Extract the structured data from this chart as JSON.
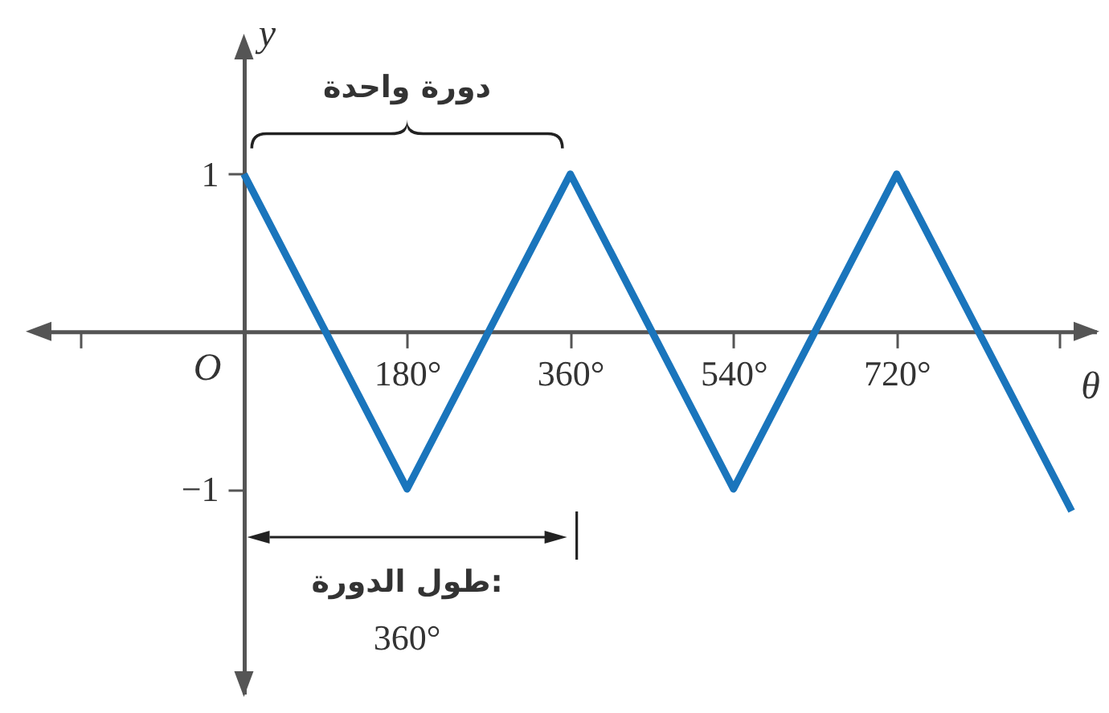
{
  "chart_data": {
    "type": "line",
    "xlabel": "θ",
    "ylabel": "y",
    "x": [
      0,
      180,
      360,
      540,
      720,
      913
    ],
    "series": [
      {
        "color": "#1a75bc",
        "values": [
          1,
          -1,
          1,
          -1,
          1,
          -1.14
        ]
      }
    ],
    "xlim": [
      -230,
      940
    ],
    "ylim": [
      -2.3,
      1.85
    ],
    "xticks": [
      {
        "value": -180,
        "label": null
      },
      {
        "value": 180,
        "label": "180°"
      },
      {
        "value": 360,
        "label": "360°"
      },
      {
        "value": 540,
        "label": "540°"
      },
      {
        "value": 720,
        "label": "720°"
      },
      {
        "value": 900,
        "label": null
      }
    ],
    "yticks": [
      1,
      {
        "value": -1,
        "label": "−1"
      }
    ],
    "line_style": "solid",
    "annotations": [
      "O",
      "دورة واحدة",
      "طول الدورة:",
      "360°"
    ]
  }
}
